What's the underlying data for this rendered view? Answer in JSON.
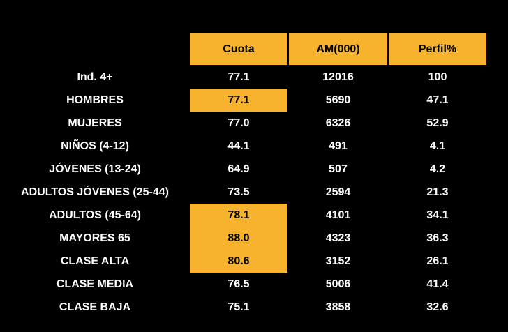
{
  "colors": {
    "background": "#000000",
    "accent_yellow": "#F7B32D",
    "text_white": "#FFFFFF",
    "text_black": "#000000"
  },
  "chart_data": {
    "type": "table",
    "columns": [
      "Cuota",
      "AM(000)",
      "Perfil%"
    ],
    "rows": [
      {
        "label": "Ind. 4+",
        "cuota": "77.1",
        "am": "12016",
        "perfil": "100",
        "cuota_highlight": false
      },
      {
        "label": "HOMBRES",
        "cuota": "77.1",
        "am": "5690",
        "perfil": "47.1",
        "cuota_highlight": true
      },
      {
        "label": "MUJERES",
        "cuota": "77.0",
        "am": "6326",
        "perfil": "52.9",
        "cuota_highlight": false
      },
      {
        "label": "NIÑOS (4-12)",
        "cuota": "44.1",
        "am": "491",
        "perfil": "4.1",
        "cuota_highlight": false
      },
      {
        "label": "JÓVENES (13-24)",
        "cuota": "64.9",
        "am": "507",
        "perfil": "4.2",
        "cuota_highlight": false
      },
      {
        "label": "ADULTOS JÓVENES (25-44)",
        "cuota": "73.5",
        "am": "2594",
        "perfil": "21.3",
        "cuota_highlight": false
      },
      {
        "label": "ADULTOS (45-64)",
        "cuota": "78.1",
        "am": "4101",
        "perfil": "34.1",
        "cuota_highlight": true
      },
      {
        "label": "MAYORES 65",
        "cuota": "88.0",
        "am": "4323",
        "perfil": "36.3",
        "cuota_highlight": true
      },
      {
        "label": "CLASE ALTA",
        "cuota": "80.6",
        "am": "3152",
        "perfil": "26.1",
        "cuota_highlight": true
      },
      {
        "label": "CLASE MEDIA",
        "cuota": "76.5",
        "am": "5006",
        "perfil": "41.4",
        "cuota_highlight": false
      },
      {
        "label": "CLASE BAJA",
        "cuota": "75.1",
        "am": "3858",
        "perfil": "32.6",
        "cuota_highlight": false
      }
    ],
    "highlighted_cuota_rows": [
      "HOMBRES",
      "ADULTOS (45-64)",
      "MAYORES 65",
      "CLASE ALTA"
    ]
  }
}
